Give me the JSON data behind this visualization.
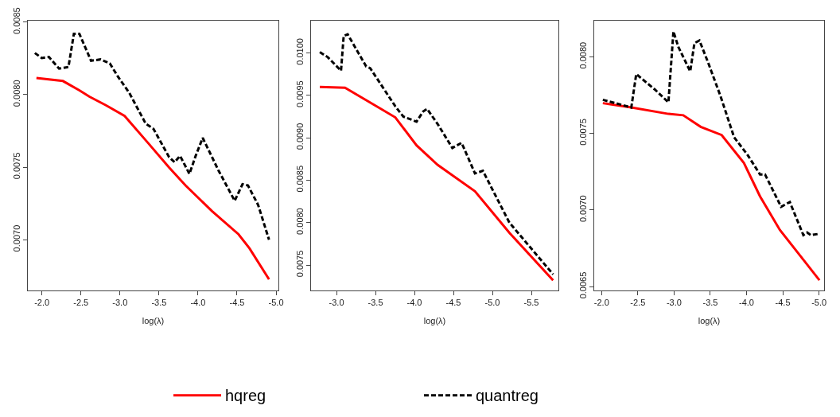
{
  "chart_data": [
    {
      "type": "line",
      "xlabel": "log(λ)",
      "legend": "bottom",
      "xlim": [
        -1.82,
        -5.03
      ],
      "ylim": [
        0.00665,
        0.00851
      ],
      "xticks": [
        {
          "value": -2.0,
          "label": "-2.0"
        },
        {
          "value": -2.5,
          "label": "-2.5"
        },
        {
          "value": -3.0,
          "label": "-3.0"
        },
        {
          "value": -3.5,
          "label": "-3.5"
        },
        {
          "value": -4.0,
          "label": "-4.0"
        },
        {
          "value": -4.5,
          "label": "-4.5"
        },
        {
          "value": -5.0,
          "label": "-5.0"
        }
      ],
      "yticks": [
        {
          "value": 0.007,
          "label": "0.0070"
        },
        {
          "value": 0.0075,
          "label": "0.0075"
        },
        {
          "value": 0.008,
          "label": "0.0080"
        },
        {
          "value": 0.0085,
          "label": "0.0085"
        }
      ],
      "series": [
        {
          "name": "hqreg",
          "color": "#ff0000",
          "line_style": "solid",
          "x": [
            -1.93,
            -2.27,
            -2.48,
            -2.61,
            -2.82,
            -3.06,
            -3.36,
            -3.63,
            -3.84,
            -4.18,
            -4.52,
            -4.66,
            -4.91
          ],
          "values": [
            0.008115,
            0.008094,
            0.00803,
            0.007986,
            0.007927,
            0.007853,
            0.007667,
            0.007498,
            0.007374,
            0.007197,
            0.007037,
            0.00694,
            0.006727
          ]
        },
        {
          "name": "quantreg",
          "color": "#000000",
          "line_style": "dashed",
          "x": [
            -1.91,
            -2.0,
            -2.09,
            -2.22,
            -2.34,
            -2.41,
            -2.48,
            -2.63,
            -2.75,
            -2.87,
            -2.97,
            -3.12,
            -3.33,
            -3.43,
            -3.63,
            -3.7,
            -3.77,
            -3.89,
            -3.97,
            -4.06,
            -4.18,
            -4.26,
            -4.47,
            -4.57,
            -4.64,
            -4.77,
            -4.91
          ],
          "values": [
            0.008287,
            0.008252,
            0.00826,
            0.00818,
            0.00819,
            0.00842,
            0.00842,
            0.008234,
            0.008243,
            0.008216,
            0.008128,
            0.008012,
            0.0078,
            0.007764,
            0.007569,
            0.007534,
            0.007578,
            0.007454,
            0.007578,
            0.007702,
            0.007569,
            0.00748,
            0.007268,
            0.007383,
            0.007374,
            0.00724,
            0.007
          ]
        }
      ]
    },
    {
      "type": "line",
      "xlabel": "log(λ)",
      "xlim": [
        -2.673,
        -5.847
      ],
      "ylim": [
        0.0072,
        0.01038
      ],
      "xticks": [
        {
          "value": -3.0,
          "label": "-3.0"
        },
        {
          "value": -3.5,
          "label": "-3.5"
        },
        {
          "value": -4.0,
          "label": "-4.0"
        },
        {
          "value": -4.5,
          "label": "-4.5"
        },
        {
          "value": -5.0,
          "label": "-5.0"
        },
        {
          "value": -5.5,
          "label": "-5.5"
        }
      ],
      "yticks": [
        {
          "value": 0.0075,
          "label": "0.0075"
        },
        {
          "value": 0.008,
          "label": "0.0080"
        },
        {
          "value": 0.0085,
          "label": "0.0085"
        },
        {
          "value": 0.009,
          "label": "0.0090"
        },
        {
          "value": 0.0095,
          "label": "0.0095"
        },
        {
          "value": 0.01,
          "label": "0.0100"
        }
      ],
      "series": [
        {
          "name": "hqreg",
          "color": "#ff0000",
          "line_style": "solid",
          "x": [
            -2.786,
            -3.109,
            -3.517,
            -3.755,
            -4.027,
            -4.299,
            -4.776,
            -5.218,
            -5.779
          ],
          "values": [
            0.0096,
            0.00959,
            0.00937,
            0.00924,
            0.00891,
            0.00868,
            0.00837,
            0.00788,
            0.00732
          ]
        },
        {
          "name": "quantreg",
          "color": "#000000",
          "line_style": "dashed",
          "x": [
            -2.786,
            -2.888,
            -3.058,
            -3.092,
            -3.143,
            -3.381,
            -3.432,
            -3.755,
            -3.857,
            -4.027,
            -4.112,
            -4.163,
            -4.299,
            -4.486,
            -4.605,
            -4.776,
            -4.878,
            -5.218,
            -5.779
          ],
          "values": [
            0.01001,
            0.00995,
            0.00979,
            0.0102,
            0.01022,
            0.00984,
            0.00982,
            0.00937,
            0.00925,
            0.00919,
            0.00931,
            0.00934,
            0.00916,
            0.00888,
            0.00894,
            0.00858,
            0.00861,
            0.008,
            0.00739
          ]
        }
      ]
    },
    {
      "type": "line",
      "xlabel": "log(λ)",
      "xlim": [
        -1.898,
        -5.07
      ],
      "ylim": [
        0.006475,
        0.008235
      ],
      "xticks": [
        {
          "value": -2.0,
          "label": "-2.0"
        },
        {
          "value": -2.5,
          "label": "-2.5"
        },
        {
          "value": -3.0,
          "label": "-3.0"
        },
        {
          "value": -3.5,
          "label": "-3.5"
        },
        {
          "value": -4.0,
          "label": "-4.0"
        },
        {
          "value": -4.5,
          "label": "-4.5"
        },
        {
          "value": -5.0,
          "label": "-5.0"
        }
      ],
      "yticks": [
        {
          "value": 0.0065,
          "label": "0.0065"
        },
        {
          "value": 0.007,
          "label": "0.0070"
        },
        {
          "value": 0.0075,
          "label": "0.0075"
        },
        {
          "value": 0.008,
          "label": "0.0080"
        }
      ],
      "series": [
        {
          "name": "hqreg",
          "color": "#ff0000",
          "line_style": "solid",
          "x": [
            -2.017,
            -2.41,
            -2.922,
            -3.127,
            -3.367,
            -3.657,
            -3.964,
            -4.186,
            -4.46,
            -5.006
          ],
          "values": [
            0.007697,
            0.007669,
            0.007627,
            0.007618,
            0.007543,
            0.007489,
            0.007307,
            0.007089,
            0.00687,
            0.006542
          ]
        },
        {
          "name": "quantreg",
          "color": "#000000",
          "line_style": "dashed",
          "x": [
            -2.017,
            -2.41,
            -2.478,
            -2.735,
            -2.922,
            -2.991,
            -3.059,
            -3.223,
            -3.281,
            -3.35,
            -3.469,
            -3.64,
            -3.828,
            -4.016,
            -4.186,
            -4.255,
            -4.477,
            -4.597,
            -4.784,
            -4.836,
            -4.887,
            -5.006
          ],
          "values": [
            0.007719,
            0.007669,
            0.007887,
            0.007786,
            0.007702,
            0.008165,
            0.008064,
            0.007904,
            0.008089,
            0.008106,
            0.007963,
            0.007744,
            0.007475,
            0.007358,
            0.007232,
            0.007232,
            0.007021,
            0.007052,
            0.006836,
            0.006853,
            0.006836,
            0.006845
          ]
        }
      ]
    }
  ]
}
